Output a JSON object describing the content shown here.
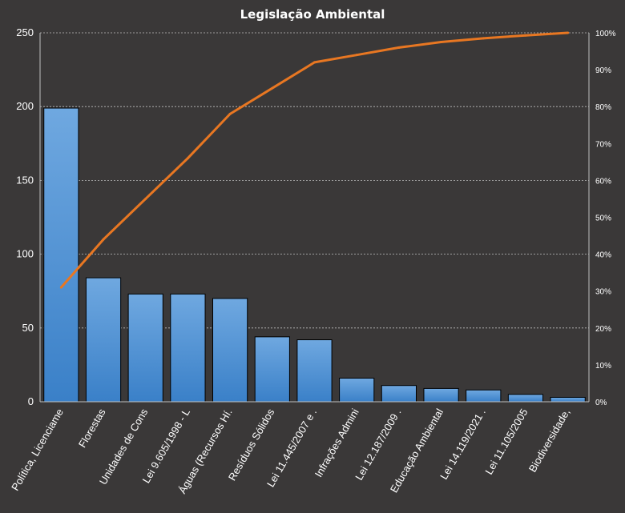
{
  "chart_data": {
    "type": "bar",
    "title": "Legislação Ambiental",
    "categories": [
      "Política, Licenciame",
      "Florestas",
      "Unidades de Cons",
      "Lei 9.605/1998 - L",
      "Águas (Recursos Hí.",
      "Resíduos Sólidos",
      "Lei 11.445/2007 e .",
      "Infrações Admini",
      "Lei 12.187/2009 .",
      "Educação Ambiental",
      "Lei 14.119/2021 .",
      "Lei 11.105/2005",
      "Biodiversidade,"
    ],
    "series": [
      {
        "type": "bar",
        "values": [
          199,
          84,
          73,
          73,
          70,
          44,
          42,
          16,
          11,
          9,
          8,
          5,
          3
        ]
      },
      {
        "type": "line",
        "axis": "right",
        "values": [
          31,
          44,
          55,
          66,
          78,
          85,
          92,
          94,
          96,
          97.5,
          98.5,
          99.3,
          100
        ]
      }
    ],
    "y_left": {
      "ylim": [
        0,
        250
      ],
      "ticks": [
        "0",
        "50",
        "100",
        "150",
        "200",
        "250"
      ]
    },
    "y_right": {
      "ylim": [
        0,
        100
      ],
      "ticks": [
        "0%",
        "10%",
        "20%",
        "30%",
        "40%",
        "50%",
        "60%",
        "70%",
        "80%",
        "90%",
        "100%"
      ]
    },
    "grid": true,
    "colors": {
      "background": "#3a3838",
      "bar_top": "#6fa8e0",
      "bar_bottom": "#3a80c8",
      "bar_edge": "#000000",
      "line": "#e87722",
      "grid": "#bfbfbf",
      "text": "#ffffff"
    }
  }
}
